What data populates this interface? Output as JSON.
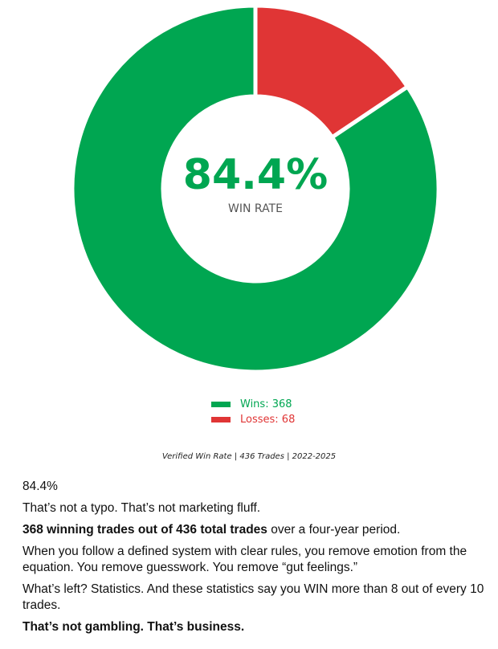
{
  "chart_data": {
    "type": "pie",
    "donut": true,
    "categories": [
      "Wins",
      "Losses"
    ],
    "values": [
      368,
      68
    ],
    "colors": [
      "#00a651",
      "#e03535"
    ],
    "center_value": "84.4%",
    "center_label": "WIN RATE",
    "legend": [
      "Wins: 368",
      "Losses: 68"
    ],
    "legend_placement": "bottom-center"
  },
  "caption": "Verified Win Rate | 436 Trades | 2022-2025",
  "article": {
    "p1": "84.4%",
    "p2": "That’s not a typo. That’s not marketing fluff.",
    "p3_bold": "368 winning trades out of 436 total trades",
    "p3_rest": " over a four-year period.",
    "p4": "When you follow a defined system with clear rules, you remove emotion from the equation. You remove guesswork. You remove “gut feelings.”",
    "p5": "What’s left? Statistics. And these statistics say you WIN more than 8 out of every 10 trades.",
    "p6": "That’s not gambling. That’s business."
  }
}
